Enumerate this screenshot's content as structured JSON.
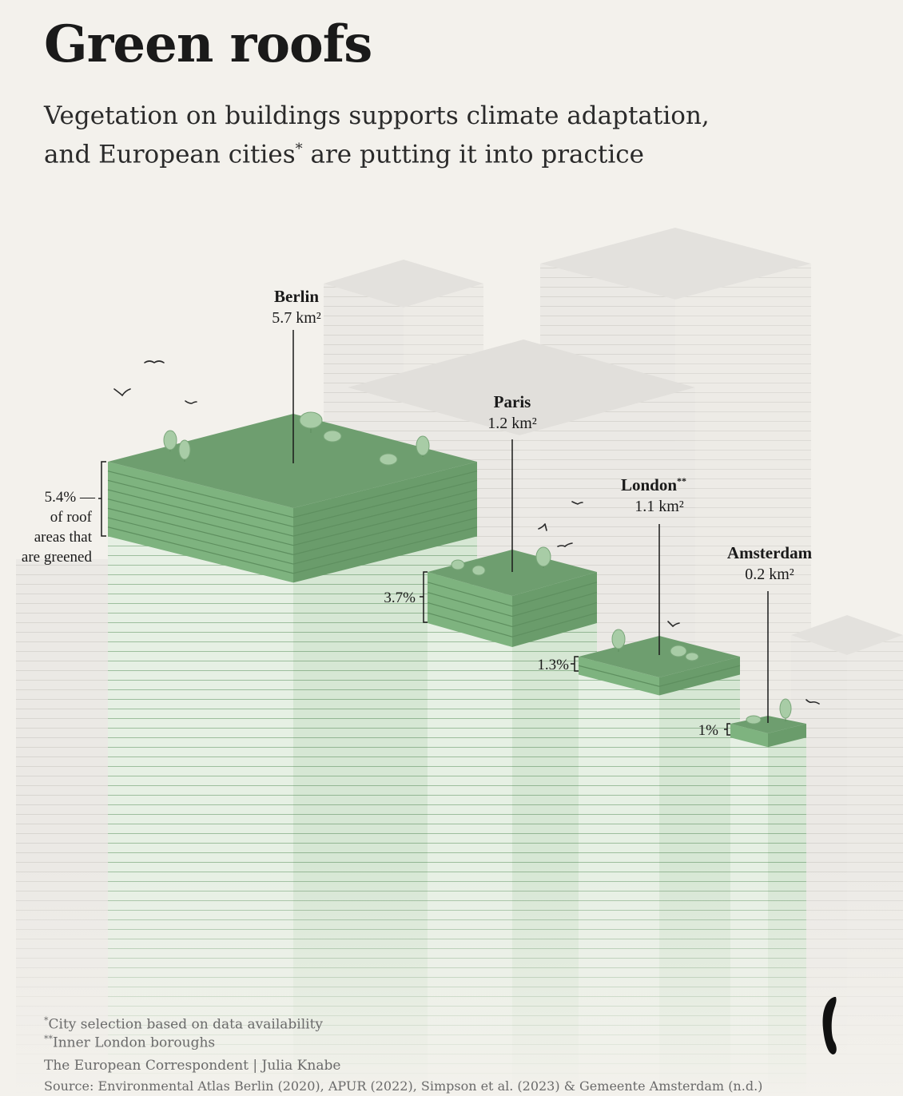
{
  "header": {
    "title": "Green roofs",
    "subtitle_before": "Vegetation on buildings supports climate adaptation, and European cities",
    "subtitle_mark": "*",
    "subtitle_after": " are putting it into practice"
  },
  "chart_data": {
    "type": "bar",
    "categories": [
      "Berlin",
      "Paris",
      "London",
      "Amsterdam"
    ],
    "category_marks": [
      "",
      "",
      "**",
      ""
    ],
    "series": [
      {
        "values": [
          5.7,
          1.2,
          1.1,
          0.2
        ],
        "value_labels": [
          "5.7 km²",
          "1.2 km²",
          "1.1 km²",
          "0.2 km²"
        ]
      },
      {
        "values": [
          5.4,
          3.7,
          1.3,
          1.0
        ],
        "value_labels": [
          "5.4%",
          "3.7%",
          "1.3%",
          "1%"
        ]
      }
    ],
    "annotation": [
      "5.4% —",
      "of roof",
      "areas that",
      "are greened"
    ]
  },
  "footer": {
    "note1_mark": "*",
    "note1": "City selection based on data availability",
    "note2_mark": "**",
    "note2": "Inner London boroughs",
    "credit": "The European Correspondent | Julia Knabe",
    "source": "Source:  Environmental Atlas Berlin (2020),  APUR (2022), Simpson et al. (2023) & Gemeente Amsterdam (n.d.)"
  },
  "colors": {
    "background": "#f3f1ec",
    "roof_top": "#6e9e6f",
    "green_band_front": "#7eb37f",
    "green_band_side": "#6a9c6b",
    "building_front": "#e4efe2",
    "building_side": "#d5e6d3",
    "ghost_building": "#e7e5e1"
  }
}
